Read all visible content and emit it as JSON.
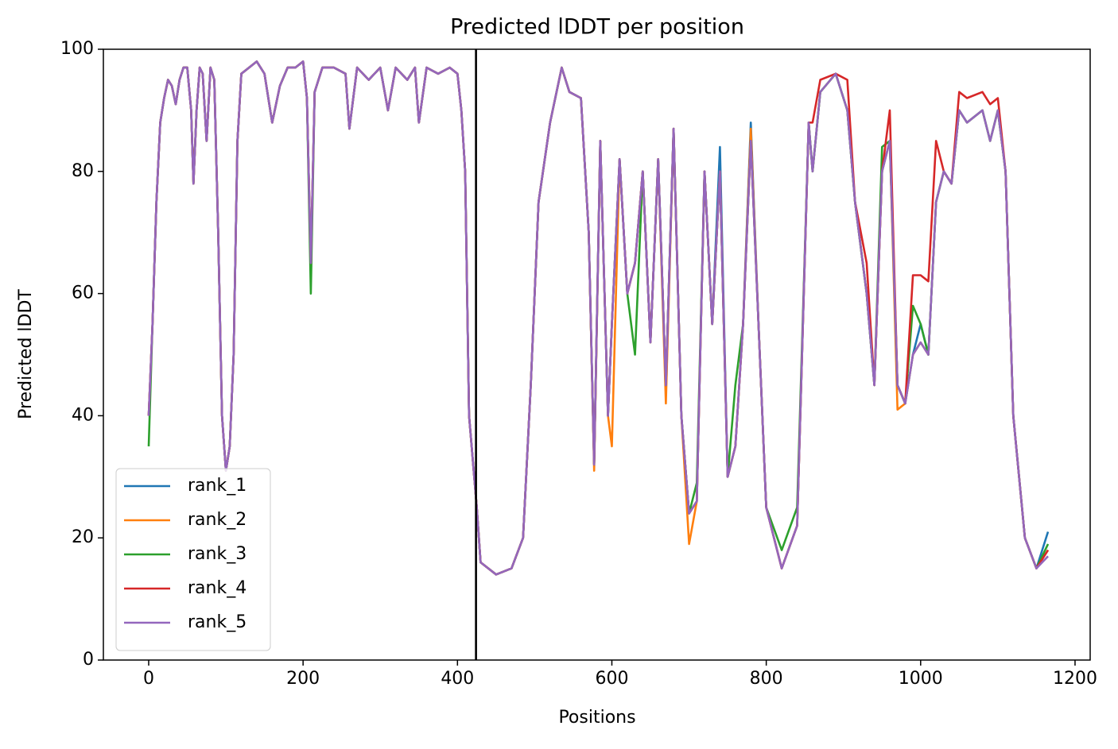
{
  "chart_data": {
    "type": "line",
    "title": "Predicted lDDT per position",
    "x_label": "Positions",
    "y_label": "Predicted lDDT",
    "xlim": [
      -58.7,
      1219.6
    ],
    "ylim": [
      0,
      100
    ],
    "xticks": [
      0,
      200,
      400,
      600,
      800,
      1000,
      1200
    ],
    "yticks": [
      0,
      20,
      40,
      60,
      80,
      100
    ],
    "vlines": [
      424
    ],
    "vline_color": "#000000",
    "legend": "lower left",
    "grid": false,
    "x": [
      0,
      5,
      10,
      15,
      20,
      25,
      30,
      35,
      40,
      45,
      50,
      55,
      58,
      62,
      66,
      70,
      75,
      80,
      85,
      90,
      95,
      100,
      105,
      110,
      115,
      120,
      130,
      140,
      150,
      160,
      170,
      180,
      190,
      200,
      205,
      210,
      215,
      225,
      240,
      255,
      260,
      270,
      285,
      300,
      310,
      320,
      335,
      345,
      350,
      360,
      375,
      390,
      400,
      405,
      410,
      415,
      425,
      430,
      450,
      470,
      485,
      495,
      505,
      520,
      535,
      545,
      560,
      570,
      577,
      585,
      595,
      600,
      610,
      620,
      630,
      640,
      650,
      660,
      670,
      680,
      690,
      700,
      710,
      720,
      730,
      740,
      750,
      760,
      770,
      780,
      790,
      800,
      820,
      840,
      855,
      860,
      870,
      890,
      905,
      915,
      930,
      940,
      950,
      960,
      970,
      980,
      990,
      1000,
      1010,
      1020,
      1030,
      1040,
      1050,
      1060,
      1080,
      1090,
      1100,
      1110,
      1120,
      1135,
      1150,
      1165
    ],
    "series": [
      {
        "name": "rank_1",
        "color": "#1f77b4",
        "values": [
          40,
          55,
          75,
          88,
          92,
          95,
          94,
          91,
          95,
          97,
          97,
          90,
          78,
          90,
          97,
          96,
          85,
          97,
          95,
          70,
          40,
          31,
          35,
          50,
          85,
          96,
          97,
          98,
          96,
          88,
          94,
          97,
          97,
          98,
          92,
          65,
          93,
          97,
          97,
          96,
          87,
          97,
          95,
          97,
          90,
          97,
          95,
          97,
          88,
          97,
          96,
          97,
          96,
          90,
          80,
          40,
          25,
          16,
          14,
          15,
          20,
          45,
          75,
          88,
          97,
          93,
          92,
          70,
          32,
          85,
          40,
          55,
          82,
          60,
          65,
          80,
          52,
          82,
          45,
          87,
          40,
          24,
          26,
          80,
          55,
          84,
          30,
          35,
          55,
          88,
          55,
          25,
          15,
          22,
          88,
          80,
          93,
          96,
          90,
          75,
          60,
          45,
          80,
          85,
          45,
          42,
          50,
          55,
          50,
          75,
          80,
          78,
          90,
          88,
          90,
          85,
          90,
          80,
          40,
          20,
          15,
          21
        ]
      },
      {
        "name": "rank_2",
        "color": "#ff7f0e",
        "values": [
          40,
          55,
          75,
          88,
          92,
          95,
          94,
          91,
          95,
          97,
          97,
          90,
          78,
          90,
          97,
          96,
          85,
          97,
          95,
          70,
          40,
          31,
          35,
          50,
          85,
          96,
          97,
          98,
          96,
          88,
          94,
          97,
          97,
          98,
          92,
          65,
          93,
          97,
          97,
          96,
          87,
          97,
          95,
          97,
          90,
          97,
          95,
          97,
          88,
          97,
          96,
          97,
          96,
          90,
          80,
          40,
          25,
          16,
          14,
          15,
          20,
          45,
          75,
          88,
          97,
          93,
          92,
          70,
          31,
          85,
          40,
          35,
          82,
          60,
          65,
          80,
          52,
          82,
          42,
          87,
          40,
          19,
          26,
          80,
          55,
          80,
          30,
          35,
          55,
          87,
          55,
          25,
          15,
          22,
          88,
          80,
          93,
          96,
          90,
          75,
          60,
          45,
          80,
          85,
          41,
          42,
          50,
          52,
          50,
          75,
          80,
          78,
          90,
          88,
          90,
          85,
          90,
          80,
          40,
          20,
          15,
          18
        ]
      },
      {
        "name": "rank_3",
        "color": "#2ca02c",
        "values": [
          35,
          55,
          75,
          88,
          92,
          95,
          94,
          91,
          95,
          97,
          97,
          90,
          78,
          90,
          97,
          96,
          85,
          97,
          95,
          70,
          40,
          31,
          35,
          50,
          85,
          96,
          97,
          98,
          96,
          88,
          94,
          97,
          97,
          98,
          92,
          60,
          93,
          97,
          97,
          96,
          87,
          97,
          95,
          97,
          90,
          97,
          95,
          97,
          88,
          97,
          96,
          97,
          96,
          90,
          80,
          40,
          25,
          16,
          14,
          15,
          20,
          45,
          75,
          88,
          97,
          93,
          92,
          70,
          32,
          85,
          40,
          55,
          82,
          60,
          50,
          80,
          52,
          82,
          45,
          87,
          40,
          24,
          29,
          80,
          55,
          80,
          30,
          45,
          55,
          85,
          55,
          25,
          18,
          25,
          88,
          80,
          93,
          96,
          90,
          75,
          60,
          45,
          84,
          85,
          45,
          42,
          58,
          55,
          50,
          75,
          80,
          78,
          90,
          88,
          90,
          85,
          90,
          80,
          40,
          20,
          15,
          19
        ]
      },
      {
        "name": "rank_4",
        "color": "#d62728",
        "values": [
          40,
          55,
          75,
          88,
          92,
          95,
          94,
          91,
          95,
          97,
          97,
          90,
          78,
          90,
          97,
          96,
          85,
          97,
          95,
          70,
          40,
          31,
          35,
          50,
          85,
          96,
          97,
          98,
          96,
          88,
          94,
          97,
          97,
          98,
          92,
          65,
          93,
          97,
          97,
          96,
          87,
          97,
          95,
          97,
          90,
          97,
          95,
          97,
          88,
          97,
          96,
          97,
          96,
          90,
          80,
          40,
          25,
          16,
          14,
          15,
          20,
          45,
          75,
          88,
          97,
          93,
          92,
          70,
          32,
          85,
          40,
          55,
          82,
          60,
          65,
          80,
          52,
          82,
          45,
          87,
          40,
          24,
          26,
          80,
          55,
          80,
          30,
          35,
          55,
          85,
          55,
          25,
          15,
          22,
          88,
          88,
          95,
          96,
          95,
          75,
          65,
          45,
          80,
          90,
          45,
          42,
          63,
          63,
          62,
          85,
          80,
          78,
          93,
          92,
          93,
          91,
          92,
          80,
          40,
          20,
          15,
          18
        ]
      },
      {
        "name": "rank_5",
        "color": "#9467bd",
        "values": [
          40,
          55,
          75,
          88,
          92,
          95,
          94,
          91,
          95,
          97,
          97,
          90,
          78,
          90,
          97,
          96,
          85,
          97,
          95,
          70,
          40,
          31,
          35,
          50,
          85,
          96,
          97,
          98,
          96,
          88,
          94,
          97,
          97,
          98,
          92,
          65,
          93,
          97,
          97,
          96,
          87,
          97,
          95,
          97,
          90,
          97,
          95,
          97,
          88,
          97,
          96,
          97,
          96,
          90,
          80,
          40,
          25,
          16,
          14,
          15,
          20,
          45,
          75,
          88,
          97,
          93,
          92,
          70,
          32,
          85,
          40,
          55,
          82,
          60,
          65,
          80,
          52,
          82,
          45,
          87,
          40,
          24,
          26,
          80,
          55,
          80,
          30,
          35,
          55,
          85,
          55,
          25,
          15,
          22,
          88,
          80,
          93,
          96,
          90,
          75,
          60,
          45,
          80,
          85,
          45,
          42,
          50,
          52,
          50,
          75,
          80,
          78,
          90,
          88,
          90,
          85,
          90,
          80,
          40,
          20,
          15,
          17
        ]
      }
    ]
  }
}
